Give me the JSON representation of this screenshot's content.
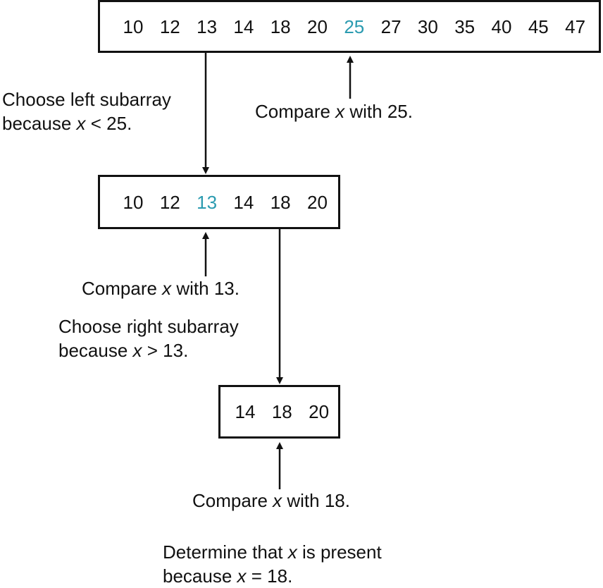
{
  "colors": {
    "highlight": "#2b9bb0",
    "line": "#111111"
  },
  "arrays": {
    "full": [
      "10",
      "12",
      "13",
      "14",
      "18",
      "20",
      "25",
      "27",
      "30",
      "35",
      "40",
      "45",
      "47"
    ],
    "left": [
      "10",
      "12",
      "13",
      "14",
      "18",
      "20"
    ],
    "final": [
      "14",
      "18",
      "20"
    ]
  },
  "highlights": {
    "full": "25",
    "left": "13"
  },
  "captions": {
    "choose_left_line1": "Choose left subarray",
    "choose_left_line2_pre": "because ",
    "choose_left_var": "x",
    "choose_left_line2_post": " < 25.",
    "compare25_pre": "Compare ",
    "compare25_var": "x",
    "compare25_post": " with 25.",
    "compare13_pre": "Compare ",
    "compare13_var": "x",
    "compare13_post": " with 13.",
    "choose_right_line1": "Choose right subarray",
    "choose_right_line2_pre": "because ",
    "choose_right_var": "x",
    "choose_right_line2_post": " > 13.",
    "compare18_pre": "Compare ",
    "compare18_var": "x",
    "compare18_post": " with 18.",
    "determine_line1_pre": "Determine that ",
    "determine_var": "x",
    "determine_line1_post": " is present",
    "determine_line2_pre": "because ",
    "determine_var2": "x",
    "determine_line2_post": " = 18."
  }
}
